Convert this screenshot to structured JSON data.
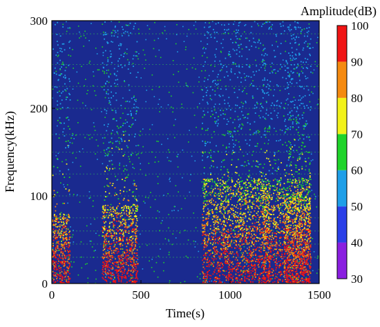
{
  "chart_data": {
    "type": "heatmap",
    "title": "",
    "xlabel": "Time(s)",
    "ylabel": "Frequency(kHz)",
    "xlim": [
      0,
      1500
    ],
    "ylim": [
      0,
      300
    ],
    "xticks": [
      0,
      500,
      1000,
      1500
    ],
    "yticks": [
      0,
      100,
      200,
      300
    ],
    "background_color": "#1a2a8f",
    "colorbar": {
      "label": "Amplitude(dB)",
      "range": [
        30,
        100
      ],
      "ticks": [
        30,
        40,
        50,
        60,
        70,
        80,
        90,
        100
      ],
      "levels": [
        {
          "from": 30,
          "to": 40,
          "color": "#8a1fe0"
        },
        {
          "from": 40,
          "to": 50,
          "color": "#2a3fe8"
        },
        {
          "from": 50,
          "to": 60,
          "color": "#1f9fe8"
        },
        {
          "from": 60,
          "to": 70,
          "color": "#1fd42a"
        },
        {
          "from": 70,
          "to": 80,
          "color": "#f2f21a"
        },
        {
          "from": 80,
          "to": 90,
          "color": "#f58a10"
        },
        {
          "from": 90,
          "to": 100,
          "color": "#f01414"
        }
      ]
    },
    "activity_bursts": [
      {
        "time_range": [
          0,
          100
        ],
        "freq_max": 80
      },
      {
        "time_range": [
          280,
          480
        ],
        "freq_max": 90
      },
      {
        "time_range": [
          840,
          1450
        ],
        "freq_max": 120
      },
      {
        "time_range": [
          1180,
          1220
        ],
        "freq_max": 110
      },
      {
        "time_range": [
          1300,
          1450
        ],
        "freq_max": 100
      }
    ],
    "harmonic_lines_khz": [
      30,
      45,
      60,
      75,
      100,
      125,
      150,
      170,
      200,
      225,
      250,
      285
    ]
  }
}
